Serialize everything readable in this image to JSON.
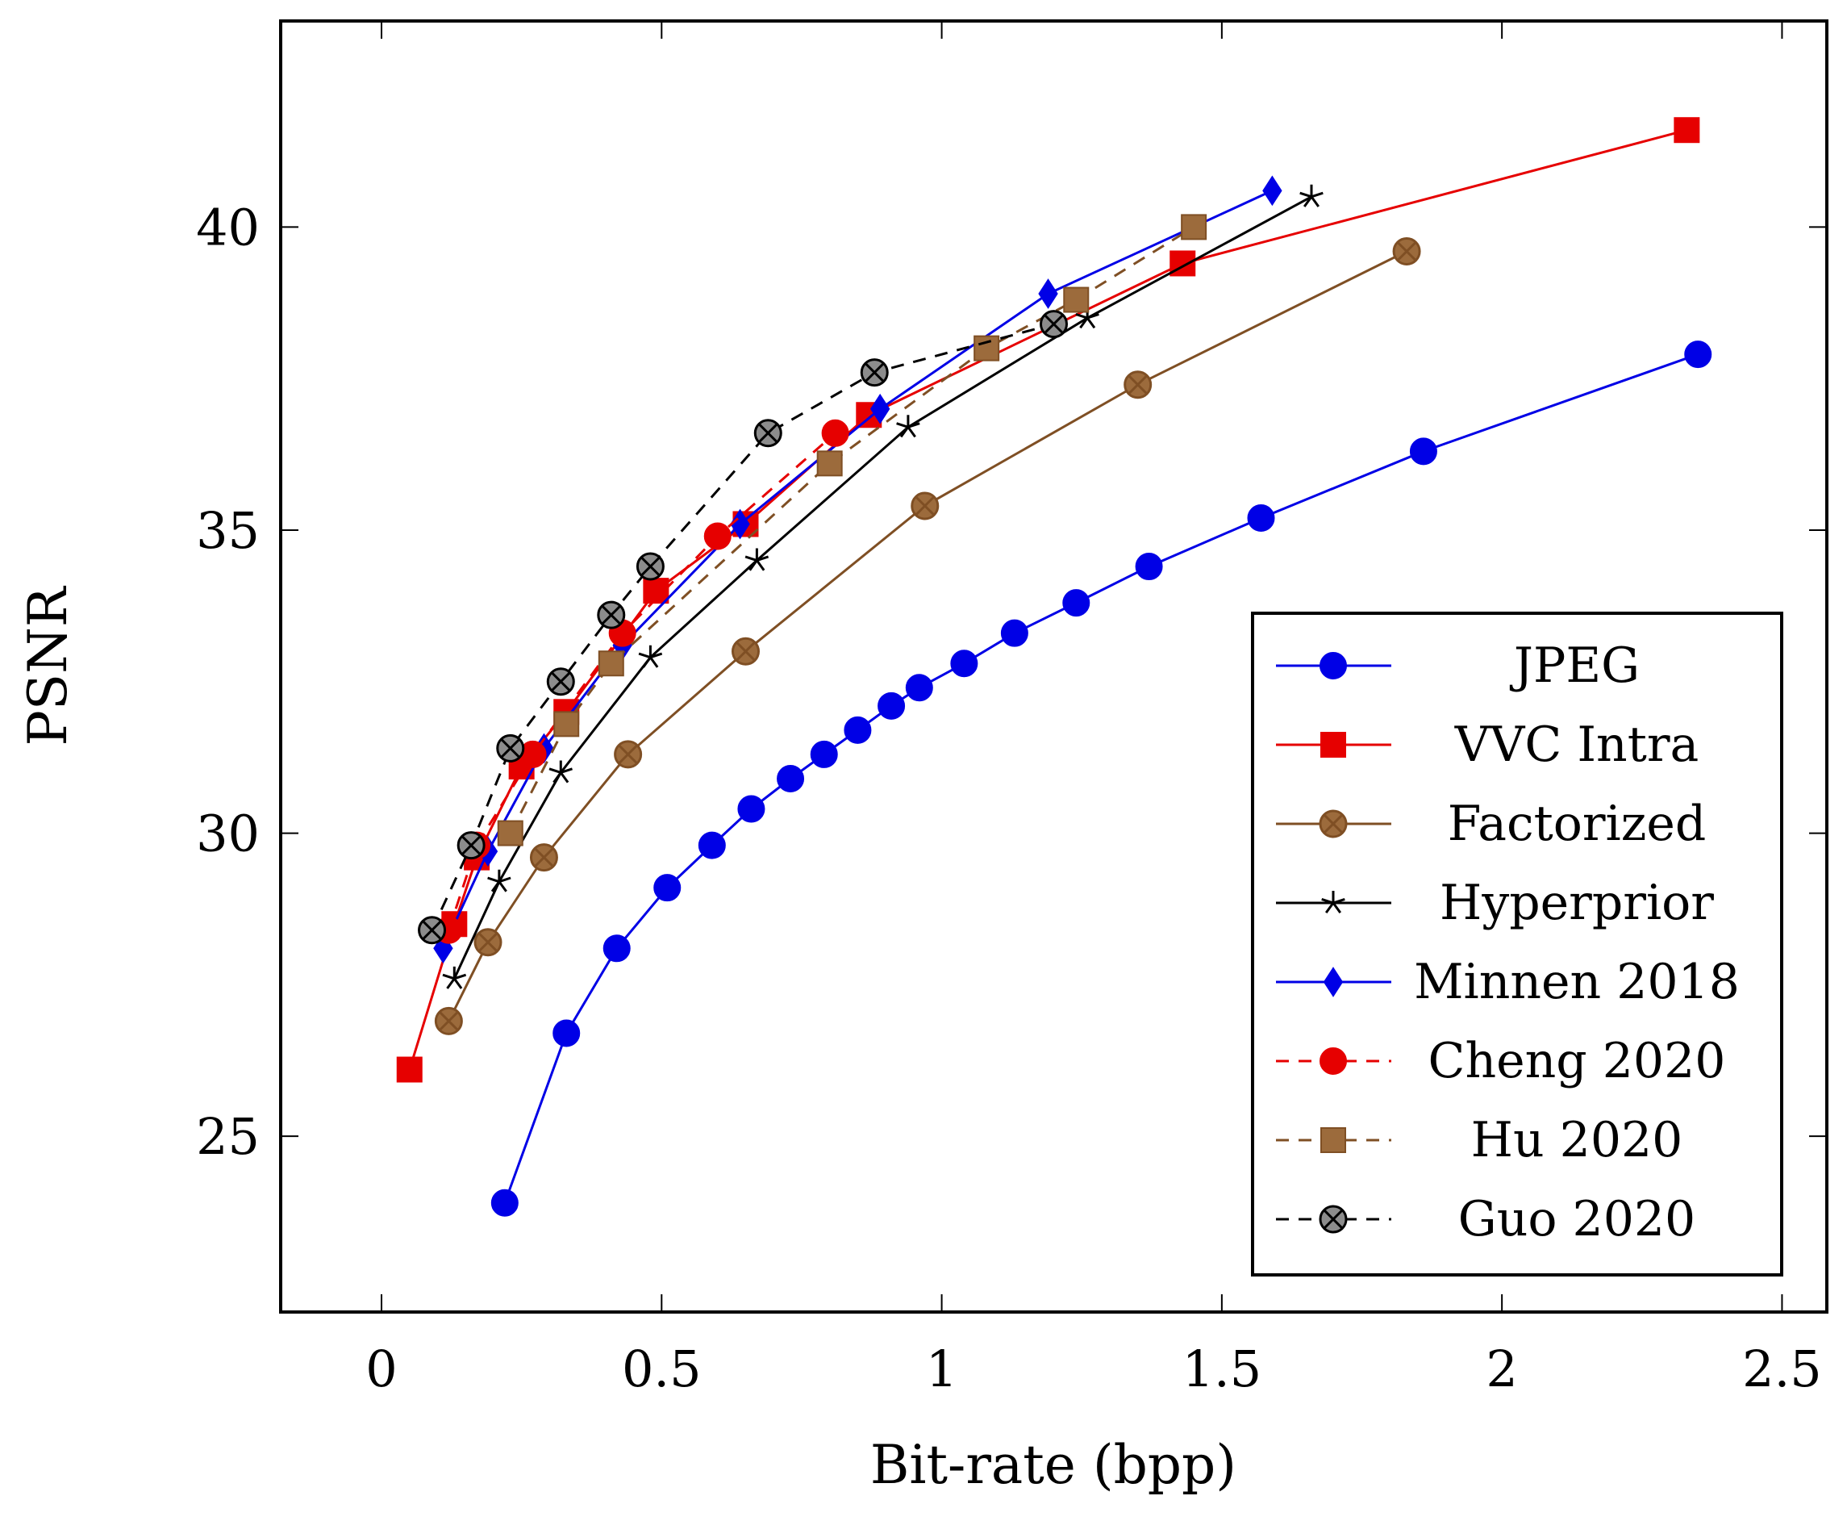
{
  "chart_data": {
    "type": "line",
    "title": "",
    "xlabel": "Bit-rate (bpp)",
    "ylabel": "PSNR",
    "xlim": [
      -0.18,
      2.58
    ],
    "ylim": [
      22.1,
      43.4
    ],
    "xticks": [
      0,
      0.5,
      1,
      1.5,
      2,
      2.5
    ],
    "xtick_labels": [
      "0",
      "0.5",
      "1",
      "1.5",
      "2",
      "2.5"
    ],
    "yticks": [
      25,
      30,
      35,
      40
    ],
    "ytick_labels": [
      "25",
      "30",
      "35",
      "40"
    ],
    "grid": false,
    "legend_position": "bottom-right",
    "series": [
      {
        "name": "JPEG",
        "color": "#0000e6",
        "dash": "solid",
        "marker": "circle",
        "x": [
          0.22,
          0.33,
          0.42,
          0.51,
          0.59,
          0.66,
          0.73,
          0.79,
          0.85,
          0.91,
          0.96,
          1.04,
          1.13,
          1.24,
          1.37,
          1.57,
          1.86,
          2.35
        ],
        "y": [
          23.9,
          26.7,
          28.1,
          29.1,
          29.8,
          30.4,
          30.9,
          31.3,
          31.7,
          32.1,
          32.4,
          32.8,
          33.3,
          33.8,
          34.4,
          35.2,
          36.3,
          37.9
        ]
      },
      {
        "name": "VVC Intra",
        "color": "#e60000",
        "dash": "solid",
        "marker": "square",
        "x": [
          0.05,
          0.13,
          0.17,
          0.25,
          0.33,
          0.49,
          0.65,
          0.87,
          1.43,
          2.33
        ],
        "y": [
          26.1,
          28.5,
          29.6,
          31.1,
          32.0,
          34.0,
          35.1,
          36.9,
          39.4,
          41.6
        ]
      },
      {
        "name": "Factorized",
        "color": "#7f4f24",
        "dash": "solid",
        "marker": "crossed-circle",
        "x": [
          0.12,
          0.19,
          0.29,
          0.44,
          0.65,
          0.97,
          1.35,
          1.83
        ],
        "y": [
          26.9,
          28.2,
          29.6,
          31.3,
          33.0,
          35.4,
          37.4,
          39.6
        ]
      },
      {
        "name": "Hyperprior",
        "color": "#000000",
        "dash": "solid",
        "marker": "star",
        "x": [
          0.13,
          0.21,
          0.32,
          0.48,
          0.67,
          0.94,
          1.26,
          1.66
        ],
        "y": [
          27.6,
          29.2,
          31.0,
          32.9,
          34.5,
          36.7,
          38.5,
          40.5
        ]
      },
      {
        "name": "Minnen 2018",
        "color": "#0000e6",
        "dash": "solid",
        "marker": "diamond",
        "x": [
          0.11,
          0.19,
          0.29,
          0.43,
          0.64,
          0.89,
          1.19,
          1.59
        ],
        "y": [
          28.1,
          29.7,
          31.4,
          33.1,
          35.1,
          37.0,
          38.9,
          40.6
        ]
      },
      {
        "name": "Cheng 2020",
        "color": "#e60000",
        "dash": "dashed",
        "marker": "circle",
        "x": [
          0.12,
          0.17,
          0.27,
          0.43,
          0.6,
          0.81
        ],
        "y": [
          28.4,
          29.8,
          31.3,
          33.3,
          34.9,
          36.6
        ]
      },
      {
        "name": "Hu 2020",
        "color": "#7f4f24",
        "dash": "dashed",
        "marker": "square",
        "x": [
          0.23,
          0.33,
          0.41,
          0.8,
          1.08,
          1.24,
          1.45
        ],
        "y": [
          30.0,
          31.8,
          32.8,
          36.1,
          38.0,
          38.8,
          40.0
        ]
      },
      {
        "name": "Guo 2020",
        "color": "#000000",
        "dash": "dashed",
        "marker": "crossed-circle",
        "x": [
          0.09,
          0.16,
          0.23,
          0.32,
          0.41,
          0.48,
          0.69,
          0.88,
          1.2
        ],
        "y": [
          28.4,
          29.8,
          31.4,
          32.5,
          33.6,
          34.4,
          36.6,
          37.6,
          38.4
        ]
      }
    ]
  }
}
